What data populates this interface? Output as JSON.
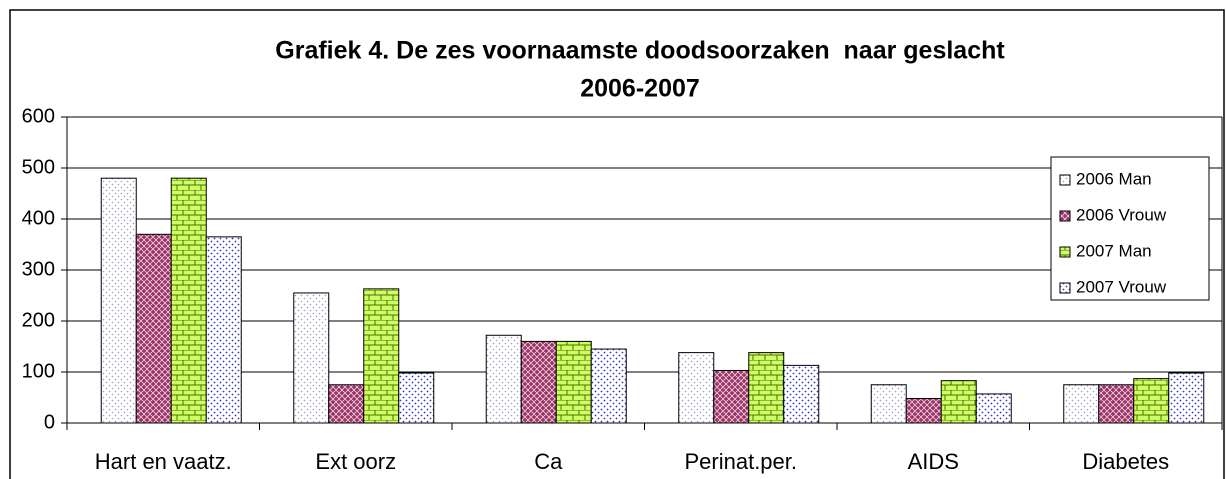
{
  "chart_data": {
    "type": "bar",
    "title": [
      "Grafiek 4. De zes voornaamste doodsoorzaken  naar geslacht",
      "2006-2007"
    ],
    "categories": [
      "Hart en vaatz.",
      "Ext oorz",
      "Ca",
      "Perinat.per.",
      "AIDS",
      "Diabetes"
    ],
    "series": [
      {
        "name": "2006 Man",
        "color": "#9999cc",
        "values": [
          480,
          255,
          172,
          138,
          75,
          75
        ]
      },
      {
        "name": "2006 Vrouw",
        "color": "#993366",
        "values": [
          370,
          75,
          160,
          103,
          48,
          75
        ]
      },
      {
        "name": "2007 Man",
        "color": "#ccff66",
        "values": [
          480,
          263,
          160,
          138,
          83,
          87
        ]
      },
      {
        "name": "2007 Vrouw",
        "color": "#3333cc",
        "values": [
          365,
          98,
          145,
          113,
          57,
          98
        ]
      }
    ],
    "ylim": [
      0,
      600
    ],
    "yticks": [
      0,
      100,
      200,
      300,
      400,
      500,
      600
    ],
    "grid": true,
    "legend": "right"
  }
}
